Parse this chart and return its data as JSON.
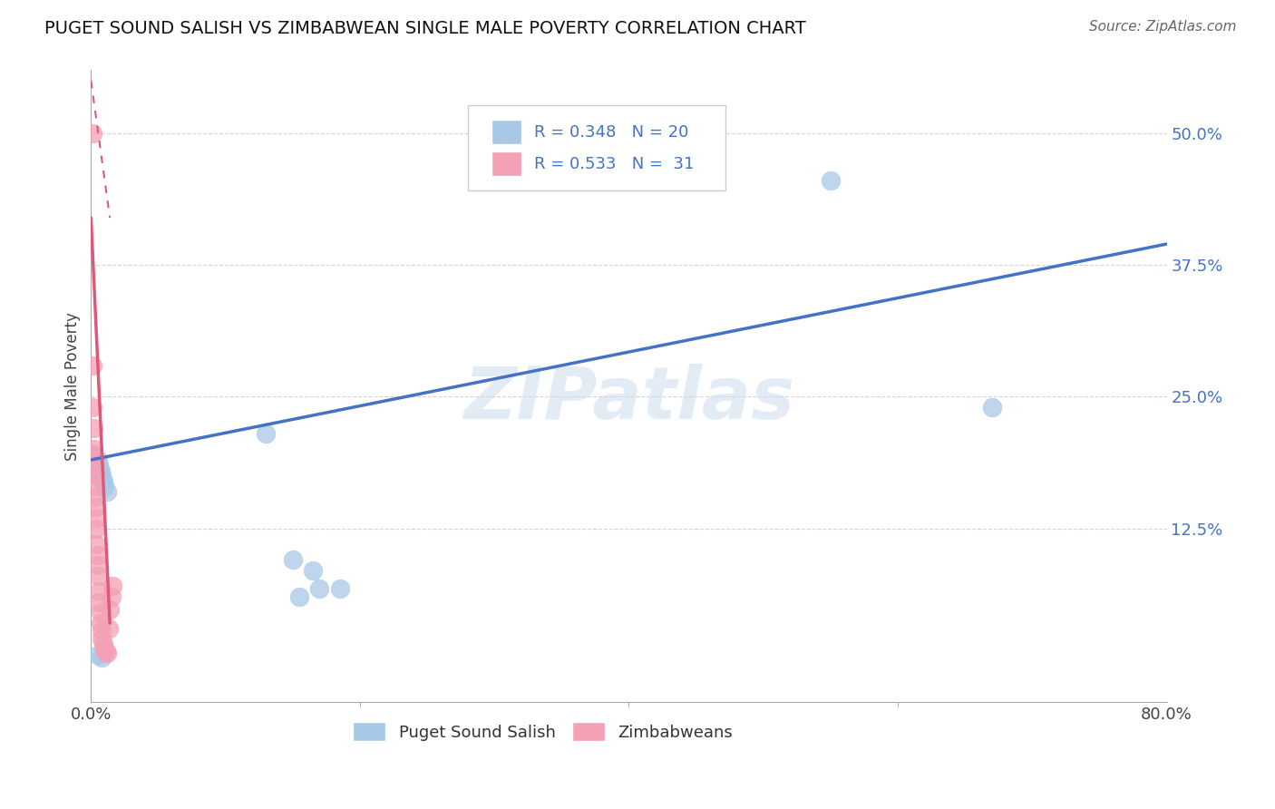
{
  "title": "PUGET SOUND SALISH VS ZIMBABWEAN SINGLE MALE POVERTY CORRELATION CHART",
  "source_text": "Source: ZipAtlas.com",
  "ylabel": "Single Male Poverty",
  "xlim": [
    0.0,
    0.8
  ],
  "ylim": [
    -0.04,
    0.56
  ],
  "ytick_positions": [
    0.125,
    0.25,
    0.375,
    0.5
  ],
  "ytick_labels": [
    "12.5%",
    "25.0%",
    "37.5%",
    "50.0%"
  ],
  "watermark": "ZIPatlas",
  "blue_color": "#a8c8e8",
  "pink_color": "#f4a0b5",
  "blue_line_color": "#4472c4",
  "pink_line_color": "#e05878",
  "grid_color": "#d0d0d0",
  "puget_x": [
    0.002,
    0.003,
    0.004,
    0.005,
    0.006,
    0.007,
    0.008,
    0.009,
    0.01,
    0.012,
    0.13,
    0.155,
    0.17,
    0.185,
    0.55,
    0.67,
    0.15,
    0.165,
    0.005,
    0.008
  ],
  "puget_y": [
    0.195,
    0.185,
    0.175,
    0.19,
    0.185,
    0.18,
    0.175,
    0.17,
    0.165,
    0.16,
    0.215,
    0.06,
    0.068,
    0.068,
    0.455,
    0.24,
    0.095,
    0.085,
    0.005,
    0.002
  ],
  "zimb_x": [
    0.001,
    0.001,
    0.001,
    0.002,
    0.002,
    0.002,
    0.003,
    0.003,
    0.003,
    0.003,
    0.004,
    0.004,
    0.004,
    0.005,
    0.005,
    0.005,
    0.006,
    0.006,
    0.007,
    0.007,
    0.008,
    0.008,
    0.009,
    0.01,
    0.011,
    0.012,
    0.013,
    0.014,
    0.015,
    0.016,
    0.001
  ],
  "zimb_y": [
    0.5,
    0.28,
    0.24,
    0.22,
    0.2,
    0.185,
    0.175,
    0.165,
    0.155,
    0.145,
    0.135,
    0.125,
    0.11,
    0.1,
    0.09,
    0.08,
    0.065,
    0.055,
    0.045,
    0.035,
    0.028,
    0.02,
    0.015,
    0.01,
    0.008,
    0.007,
    0.03,
    0.048,
    0.06,
    0.07,
    0.195
  ],
  "blue_trendline": [
    0.0,
    0.8,
    0.19,
    0.395
  ],
  "pink_trendline_solid": [
    0.0,
    0.014,
    0.42,
    0.035
  ],
  "pink_trendline_dash": [
    0.0,
    0.014,
    0.55,
    0.42
  ]
}
